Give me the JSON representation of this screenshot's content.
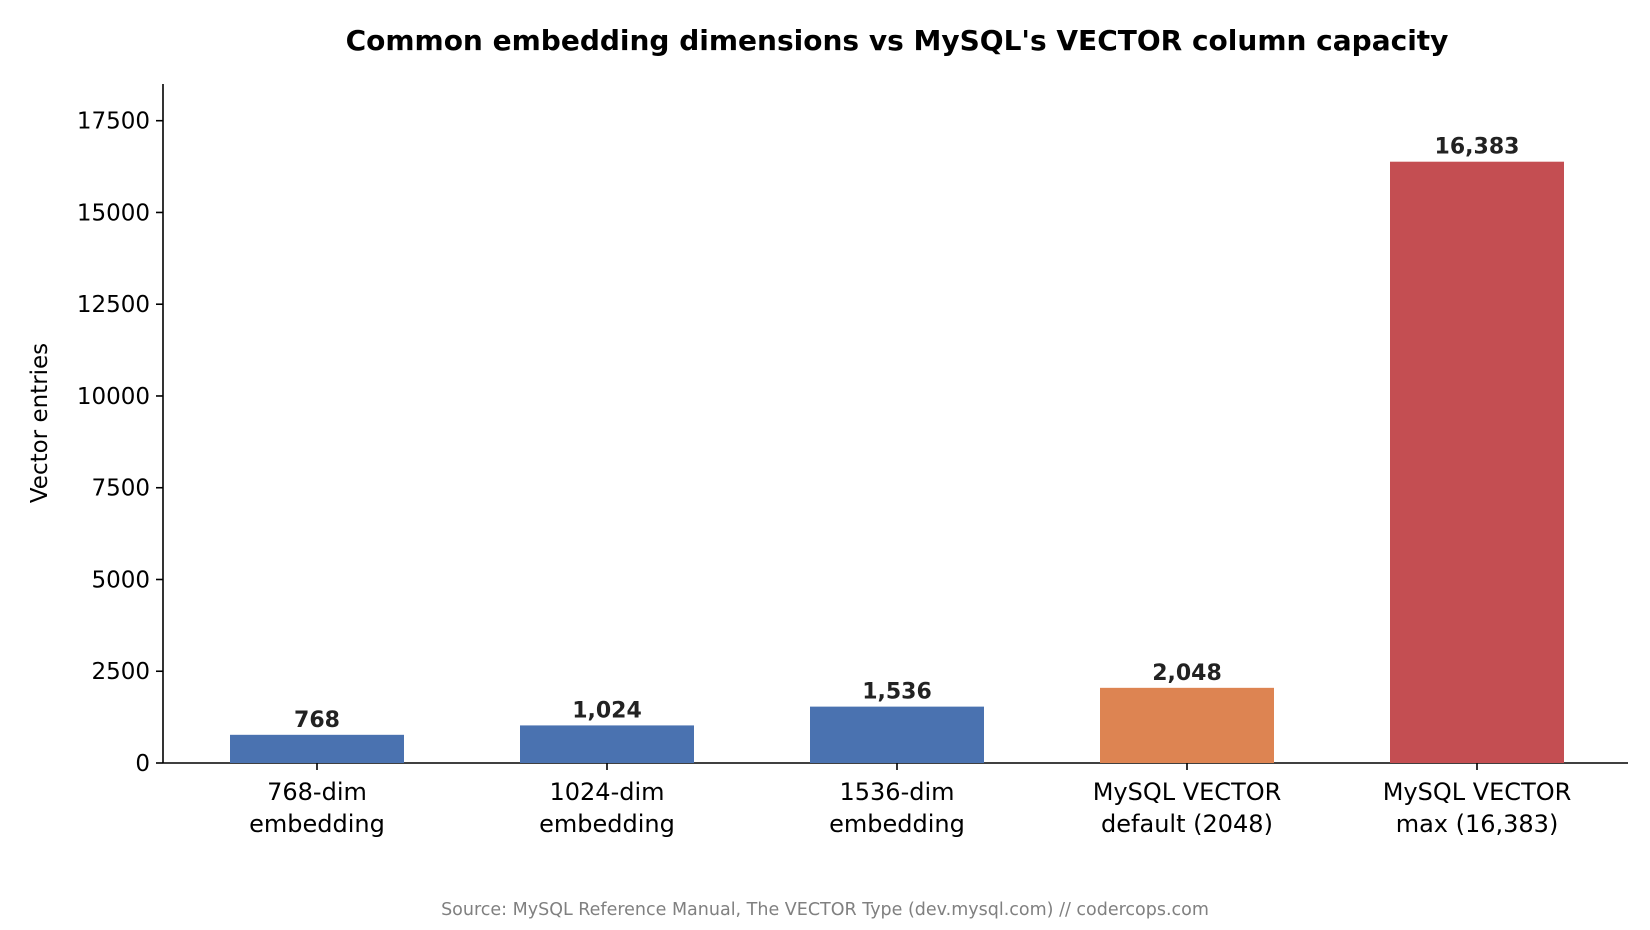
{
  "chart_data": {
    "type": "bar",
    "title": "Common embedding dimensions vs MySQL's VECTOR column capacity",
    "xlabel": "",
    "ylabel": "Vector entries",
    "categories": [
      [
        "768-dim",
        "embedding"
      ],
      [
        "1024-dim",
        "embedding"
      ],
      [
        "1536-dim",
        "embedding"
      ],
      [
        "MySQL VECTOR",
        "default (2048)"
      ],
      [
        "MySQL VECTOR",
        "max (16,383)"
      ]
    ],
    "values": [
      768,
      1024,
      1536,
      2048,
      16383
    ],
    "data_labels": [
      "768",
      "1,024",
      "1,536",
      "2,048",
      "16,383"
    ],
    "bar_colors": [
      "#4a72b0",
      "#4a72b0",
      "#4a72b0",
      "#dd8452",
      "#c44e52"
    ],
    "ylim": [
      0,
      18500
    ],
    "yticks": [
      0,
      2500,
      5000,
      7500,
      10000,
      12500,
      15000,
      17500
    ],
    "grid": false,
    "legend": "none"
  },
  "source_note": "Source: MySQL Reference Manual, The VECTOR Type (dev.mysql.com)  //  codercops.com"
}
